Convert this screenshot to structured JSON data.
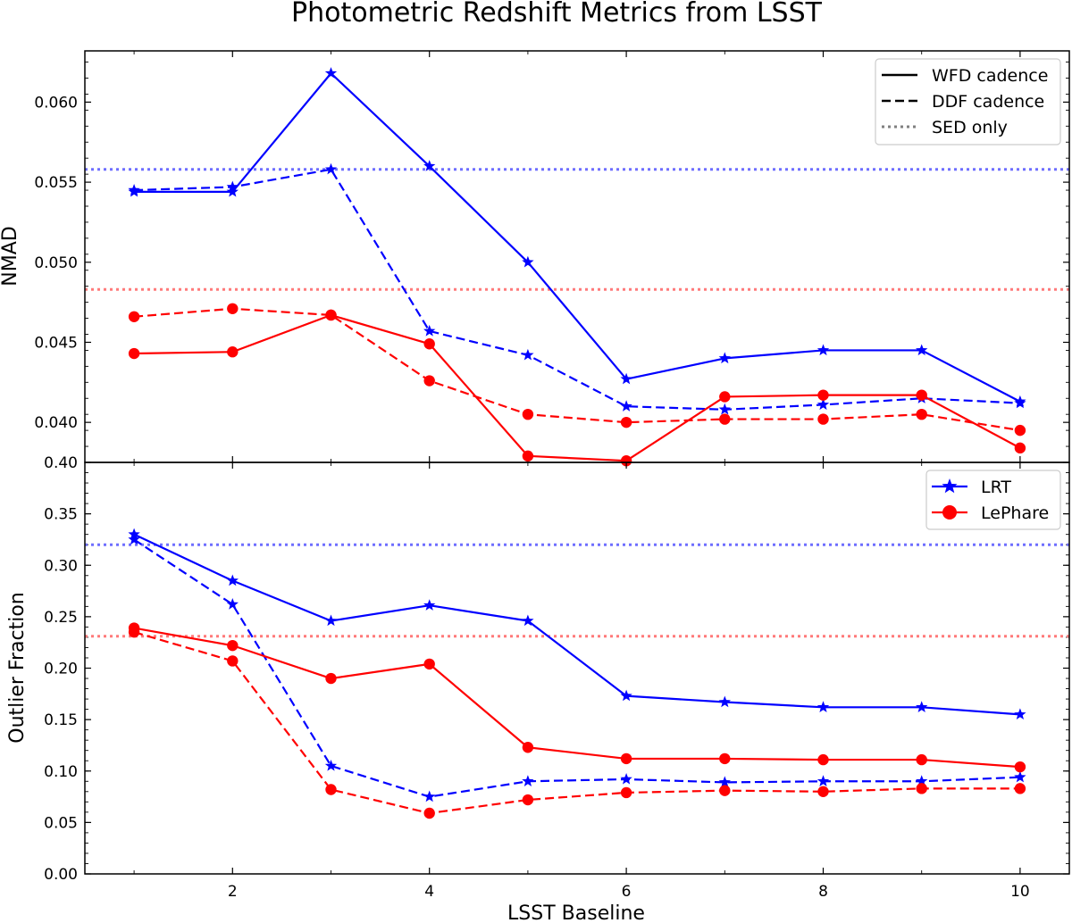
{
  "chart_data": {
    "type": "line",
    "title": "Photometric Redshift Metrics from LSST",
    "xlabel": "LSST Baseline",
    "x": [
      1,
      2,
      3,
      4,
      5,
      6,
      7,
      8,
      9,
      10
    ],
    "xlim": [
      0.5,
      10.5
    ],
    "xticks": [
      "2",
      "4",
      "6",
      "8",
      "10"
    ],
    "colors": {
      "LRT": "#0000ff",
      "LePhare": "#ff0000",
      "LRT_sed": "#6e6eff",
      "LePhare_sed": "#ff7a7a",
      "legend_gray": "#808080"
    },
    "legends": {
      "cadence": [
        {
          "label": "WFD cadence",
          "style": "solid"
        },
        {
          "label": "DDF cadence",
          "style": "dashed"
        },
        {
          "label": "SED only",
          "style": "dotted"
        }
      ],
      "methods": [
        {
          "label": "LRT",
          "marker": "star",
          "color_key": "LRT"
        },
        {
          "label": "LePhare",
          "marker": "circle",
          "color_key": "LePhare"
        }
      ]
    },
    "panels": [
      {
        "name": "nmad",
        "ylabel": "NMAD",
        "ylim": [
          0.0375,
          0.0632
        ],
        "yticks": [
          {
            "value": 0.04,
            "label": "0.040"
          },
          {
            "value": 0.045,
            "label": "0.045"
          },
          {
            "value": 0.05,
            "label": "0.050"
          },
          {
            "value": 0.055,
            "label": "0.055"
          },
          {
            "value": 0.06,
            "label": "0.060"
          }
        ],
        "series": [
          {
            "name": "LRT WFD",
            "method": "LRT",
            "cadence": "WFD",
            "values": [
              0.0544,
              0.0544,
              0.0618,
              0.056,
              0.05,
              0.0427,
              0.044,
              0.0445,
              0.0445,
              0.0413
            ]
          },
          {
            "name": "LRT DDF",
            "method": "LRT",
            "cadence": "DDF",
            "values": [
              0.0545,
              0.0547,
              0.0558,
              0.0457,
              0.0442,
              0.041,
              0.0408,
              0.0411,
              0.0415,
              0.0412
            ]
          },
          {
            "name": "LePhare WFD",
            "method": "LePhare",
            "cadence": "WFD",
            "values": [
              0.0443,
              0.0444,
              0.0467,
              0.0449,
              0.0379,
              0.0376,
              0.0416,
              0.0417,
              0.0417,
              0.0384
            ]
          },
          {
            "name": "LePhare DDF",
            "method": "LePhare",
            "cadence": "DDF",
            "values": [
              0.0466,
              0.0471,
              0.0467,
              0.0426,
              0.0405,
              0.04,
              0.0402,
              0.0402,
              0.0405,
              0.0395
            ]
          }
        ],
        "sed_only": [
          {
            "method": "LRT",
            "value": 0.0558
          },
          {
            "method": "LePhare",
            "value": 0.0483
          }
        ]
      },
      {
        "name": "outlier",
        "ylabel": "Outlier Fraction",
        "ylim": [
          0.0,
          0.4
        ],
        "yticks": [
          {
            "value": 0.0,
            "label": "0.00"
          },
          {
            "value": 0.05,
            "label": "0.05"
          },
          {
            "value": 0.1,
            "label": "0.10"
          },
          {
            "value": 0.15,
            "label": "0.15"
          },
          {
            "value": 0.2,
            "label": "0.20"
          },
          {
            "value": 0.25,
            "label": "0.25"
          },
          {
            "value": 0.3,
            "label": "0.30"
          },
          {
            "value": 0.35,
            "label": "0.35"
          },
          {
            "value": 0.4,
            "label": "0.40"
          }
        ],
        "series": [
          {
            "name": "LRT WFD",
            "method": "LRT",
            "cadence": "WFD",
            "values": [
              0.33,
              0.285,
              0.246,
              0.261,
              0.246,
              0.173,
              0.167,
              0.162,
              0.162,
              0.155
            ]
          },
          {
            "name": "LRT DDF",
            "method": "LRT",
            "cadence": "DDF",
            "values": [
              0.325,
              0.262,
              0.105,
              0.075,
              0.09,
              0.092,
              0.089,
              0.09,
              0.09,
              0.094
            ]
          },
          {
            "name": "LePhare WFD",
            "method": "LePhare",
            "cadence": "WFD",
            "values": [
              0.239,
              0.222,
              0.19,
              0.204,
              0.123,
              0.112,
              0.112,
              0.111,
              0.111,
              0.104
            ]
          },
          {
            "name": "LePhare DDF",
            "method": "LePhare",
            "cadence": "DDF",
            "values": [
              0.235,
              0.207,
              0.082,
              0.059,
              0.072,
              0.079,
              0.081,
              0.08,
              0.083,
              0.083
            ]
          }
        ],
        "sed_only": [
          {
            "method": "LRT",
            "value": 0.32
          },
          {
            "method": "LePhare",
            "value": 0.231
          }
        ]
      }
    ]
  }
}
